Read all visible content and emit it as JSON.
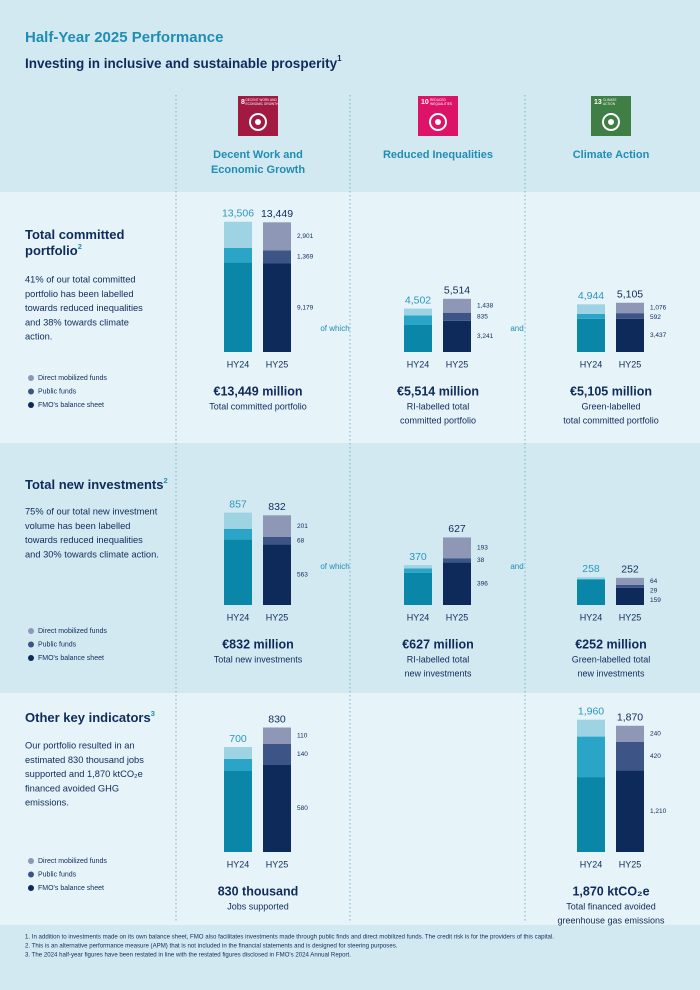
{
  "header": {
    "title": "Half-Year 2025 Performance",
    "subtitle": "Investing in inclusive and sustainable prosperity",
    "subtitle_note": "1"
  },
  "columns": [
    {
      "sdg_number": "8",
      "sdg_label": [
        "DECENT WORK AND",
        "ECONOMIC GROWTH"
      ],
      "name": [
        "Decent Work and",
        "Economic Growth"
      ],
      "color": "#a21942"
    },
    {
      "sdg_number": "10",
      "sdg_label": [
        "REDUCED",
        "INEQUALITIES"
      ],
      "name": [
        "Reduced Inequalities"
      ],
      "color": "#dd1367"
    },
    {
      "sdg_number": "13",
      "sdg_label": [
        "CLIMATE",
        "ACTION"
      ],
      "name": [
        "Climate Action"
      ],
      "color": "#3f7e44"
    }
  ],
  "sections": [
    {
      "title": [
        "Total committed",
        "portfolio"
      ],
      "note": "2",
      "text": [
        "41% of our total committed",
        "portfolio has been labelled",
        "towards reduced inequalities",
        "and 38% towards climate",
        "action."
      ],
      "connectors": [
        "of which",
        "and"
      ]
    },
    {
      "title": [
        "Total new investments"
      ],
      "note": "2",
      "text": [
        "75% of our total new investment",
        "volume has been labelled",
        "towards reduced inequalities",
        "and 30% towards climate action."
      ],
      "connectors": [
        "of which",
        "and"
      ]
    },
    {
      "title": [
        "Other key indicators"
      ],
      "note": "3",
      "text": [
        "Our portfolio resulted in an",
        "estimated 830 thousand jobs",
        "supported and 1,870 ktCO₂e",
        "financed avoided GHG",
        "emissions."
      ]
    }
  ],
  "chart_data": [
    {
      "type": "bar",
      "stacked": true,
      "categories": [
        "HY24",
        "HY25"
      ],
      "ylim": [
        0,
        14000
      ],
      "series": [
        {
          "name": "Direct mobilized funds",
          "colors": [
            "#9ed3e3",
            "#8e97b5"
          ],
          "values": [
            2700,
            2901
          ],
          "value_labels": [
            null,
            "2,901"
          ]
        },
        {
          "name": "Public funds",
          "colors": [
            "#2aa5c8",
            "#3c5486"
          ],
          "values": [
            1500,
            1369
          ],
          "value_labels": [
            null,
            "1,369"
          ]
        },
        {
          "name": "FMO's balance sheet",
          "colors": [
            "#0a86a8",
            "#0e2a5a"
          ],
          "values": [
            9306,
            9179
          ],
          "value_labels": [
            null,
            "9,179"
          ]
        }
      ],
      "totals": [
        13506,
        13449
      ],
      "total_labels": [
        "13,506",
        "13,449"
      ],
      "caption": "€13,449 million",
      "subcaption": [
        "Total committed portfolio"
      ]
    },
    {
      "type": "bar",
      "stacked": true,
      "categories": [
        "HY24",
        "HY25"
      ],
      "ylim": [
        0,
        14000
      ],
      "series": [
        {
          "colors": [
            "#9ed3e3",
            "#8e97b5"
          ],
          "values": [
            700,
            1438
          ],
          "value_labels": [
            null,
            "1,438"
          ]
        },
        {
          "colors": [
            "#2aa5c8",
            "#3c5486"
          ],
          "values": [
            1000,
            835
          ],
          "value_labels": [
            null,
            "835"
          ]
        },
        {
          "colors": [
            "#0a86a8",
            "#0e2a5a"
          ],
          "values": [
            2802,
            3241
          ],
          "value_labels": [
            null,
            "3,241"
          ]
        }
      ],
      "totals": [
        4502,
        5514
      ],
      "total_labels": [
        "4,502",
        "5,514"
      ],
      "caption": "€5,514 million",
      "subcaption": [
        "RI-labelled total",
        "committed portfolio"
      ]
    },
    {
      "type": "bar",
      "stacked": true,
      "categories": [
        "HY24",
        "HY25"
      ],
      "ylim": [
        0,
        14000
      ],
      "series": [
        {
          "colors": [
            "#9ed3e3",
            "#8e97b5"
          ],
          "values": [
            1000,
            1076
          ],
          "value_labels": [
            null,
            "1,076"
          ]
        },
        {
          "colors": [
            "#2aa5c8",
            "#3c5486"
          ],
          "values": [
            500,
            592
          ],
          "value_labels": [
            null,
            "592"
          ]
        },
        {
          "colors": [
            "#0a86a8",
            "#0e2a5a"
          ],
          "values": [
            3444,
            3437
          ],
          "value_labels": [
            null,
            "3,437"
          ]
        }
      ],
      "totals": [
        4944,
        5105
      ],
      "total_labels": [
        "4,944",
        "5,105"
      ],
      "caption": "€5,105 million",
      "subcaption": [
        "Green-labelled",
        "total committed portfolio"
      ]
    },
    {
      "type": "bar",
      "stacked": true,
      "categories": [
        "HY24",
        "HY25"
      ],
      "ylim": [
        0,
        900
      ],
      "series": [
        {
          "name": "Direct mobilized funds",
          "colors": [
            "#9ed3e3",
            "#8e97b5"
          ],
          "values": [
            150,
            201
          ]
        },
        {
          "name": "Public funds",
          "colors": [
            "#2aa5c8",
            "#3c5486"
          ],
          "values": [
            100,
            68
          ]
        },
        {
          "name": "FMO's balance sheet",
          "colors": [
            "#0a86a8",
            "#0e2a5a"
          ],
          "values": [
            607,
            563
          ]
        }
      ],
      "totals": [
        857,
        832
      ],
      "caption": "€832 million",
      "subcaption": [
        "Total new investments"
      ]
    },
    {
      "type": "bar",
      "stacked": true,
      "categories": [
        "HY24",
        "HY25"
      ],
      "ylim": [
        0,
        900
      ],
      "series": [
        {
          "colors": [
            "#9ed3e3",
            "#8e97b5"
          ],
          "values": [
            30,
            193
          ]
        },
        {
          "colors": [
            "#2aa5c8",
            "#3c5486"
          ],
          "values": [
            40,
            38
          ]
        },
        {
          "colors": [
            "#0a86a8",
            "#0e2a5a"
          ],
          "values": [
            300,
            396
          ]
        }
      ],
      "totals": [
        370,
        627
      ],
      "caption": "€627 million",
      "subcaption": [
        "RI-labelled total",
        "new investments"
      ]
    },
    {
      "type": "bar",
      "stacked": true,
      "categories": [
        "HY24",
        "HY25"
      ],
      "ylim": [
        0,
        900
      ],
      "series": [
        {
          "colors": [
            "#9ed3e3",
            "#8e97b5"
          ],
          "values": [
            15,
            64
          ]
        },
        {
          "colors": [
            "#2aa5c8",
            "#3c5486"
          ],
          "values": [
            10,
            29
          ]
        },
        {
          "colors": [
            "#0a86a8",
            "#0e2a5a"
          ],
          "values": [
            233,
            159
          ]
        }
      ],
      "totals": [
        258,
        252
      ],
      "caption": "€252 million",
      "subcaption": [
        "Green-labelled total",
        "new investments"
      ]
    },
    {
      "type": "bar",
      "stacked": true,
      "categories": [
        "HY24",
        "HY25"
      ],
      "ylim": [
        0,
        900
      ],
      "series": [
        {
          "name": "Direct mobilized funds",
          "colors": [
            "#9ed3e3",
            "#8e97b5"
          ],
          "values": [
            80,
            110
          ]
        },
        {
          "name": "Public funds",
          "colors": [
            "#2aa5c8",
            "#3c5486"
          ],
          "values": [
            80,
            140
          ]
        },
        {
          "name": "FMO's balance sheet",
          "colors": [
            "#0a86a8",
            "#0e2a5a"
          ],
          "values": [
            540,
            580
          ]
        }
      ],
      "totals": [
        700,
        830
      ],
      "caption": "830 thousand",
      "subcaption": [
        "Jobs supported"
      ]
    },
    {
      "type": "bar",
      "stacked": true,
      "categories": [
        "HY24",
        "HY25"
      ],
      "ylim": [
        0,
        2000
      ],
      "series": [
        {
          "colors": [
            "#9ed3e3",
            "#8e97b5"
          ],
          "values": [
            250,
            240
          ],
          "value_labels": [
            null,
            "240"
          ]
        },
        {
          "colors": [
            "#2aa5c8",
            "#3c5486"
          ],
          "values": [
            600,
            420
          ],
          "value_labels": [
            null,
            "420"
          ]
        },
        {
          "colors": [
            "#0a86a8",
            "#0e2a5a"
          ],
          "values": [
            1110,
            1210
          ],
          "value_labels": [
            null,
            "1,210"
          ]
        }
      ],
      "totals": [
        1960,
        1870
      ],
      "total_labels": [
        "1,960",
        "1,870"
      ],
      "caption": "1,870 ktCO₂e",
      "subcaption": [
        "Total financed avoided",
        "greenhouse gas emissions"
      ]
    }
  ],
  "footnotes": [
    "1.  In addition to investments made on its own balance sheet, FMO also facilitates investments made through public finds and direct mobilized funds. The credit risk is for the providers of this capital.",
    "2.  This is an alternative performance measure (APM) that is not included in the financial statements and is designed for steering purposes.",
    "3.  The 2024 half-year figures have been restated in line with the restated figures disclosed in FMO's 2024 Annual Report."
  ]
}
